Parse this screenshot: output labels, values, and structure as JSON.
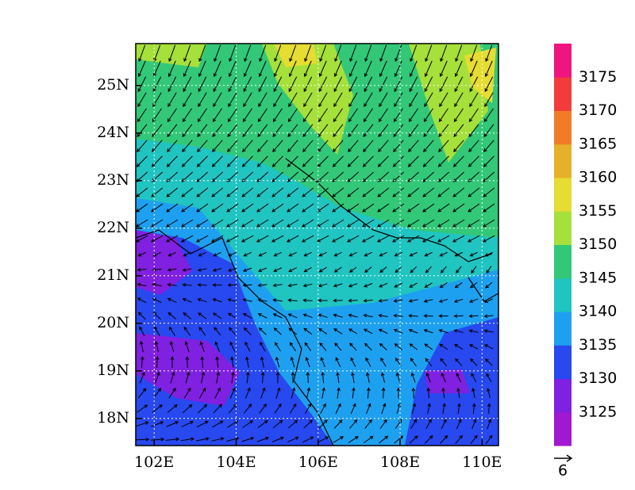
{
  "map": {
    "lon_ticks": [
      {
        "value": 102,
        "label": "102E"
      },
      {
        "value": 104,
        "label": "104E"
      },
      {
        "value": 106,
        "label": "106E"
      },
      {
        "value": 108,
        "label": "108E"
      },
      {
        "value": 110,
        "label": "110E"
      }
    ],
    "lat_ticks": [
      {
        "value": 25,
        "label": "25N"
      },
      {
        "value": 24,
        "label": "24N"
      },
      {
        "value": 23,
        "label": "23N"
      },
      {
        "value": 22,
        "label": "22N"
      },
      {
        "value": 21,
        "label": "21N"
      },
      {
        "value": 20,
        "label": "20N"
      },
      {
        "value": 19,
        "label": "19N"
      },
      {
        "value": 18,
        "label": "18N"
      }
    ],
    "lon_range": [
      101.55,
      110.4
    ],
    "lat_range": [
      17.43,
      25.88
    ],
    "colorbar": {
      "levels": [
        3125,
        3130,
        3135,
        3140,
        3145,
        3150,
        3155,
        3160,
        3165,
        3170,
        3175
      ],
      "colors": [
        "#a018d0",
        "#8020e0",
        "#2848f0",
        "#1ea0f0",
        "#20c4c0",
        "#32c878",
        "#a6e03a",
        "#e6dc32",
        "#e6b02a",
        "#f07c28",
        "#f23c3c",
        "#f0147f"
      ]
    },
    "reference_vector": 6
  }
}
